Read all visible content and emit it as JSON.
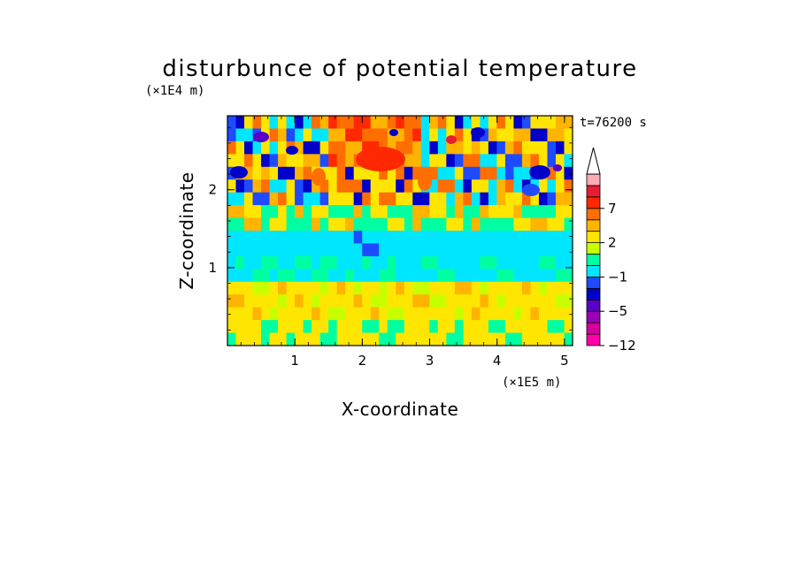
{
  "chart_data": {
    "type": "heatmap",
    "title": "disturbunce of potential temperature",
    "xlabel": "X-coordinate",
    "ylabel": "Z-coordinate",
    "x_scale_label": "(×1E5 m)",
    "y_scale_label": "(×1E4 m)",
    "time_label": "t=76200 s",
    "xlim": [
      0,
      5.12
    ],
    "ylim": [
      0,
      2.95
    ],
    "x_ticks": [
      1,
      2,
      3,
      4,
      5
    ],
    "x_tick_labels": [
      "1",
      "2",
      "3",
      "4",
      "5"
    ],
    "y_ticks": [
      1,
      2
    ],
    "y_tick_labels": [
      "1",
      "2"
    ],
    "grid": false,
    "colorbar": {
      "levels": [
        -12,
        -10,
        -8,
        -5,
        -4,
        -2,
        -1,
        0,
        1,
        2,
        4,
        5,
        7,
        10,
        12
      ],
      "colors": [
        "#ff00aa",
        "#d4009c",
        "#9c00b4",
        "#5a00c8",
        "#0000c8",
        "#1e4bff",
        "#00e6ff",
        "#00ffa0",
        "#c8ff00",
        "#ffe600",
        "#ffb400",
        "#ff6e00",
        "#ff2800",
        "#e61e32",
        "#ffaab4"
      ],
      "tick_labels": [
        "-12",
        "-5",
        "-1",
        "2",
        "7"
      ],
      "tick_values": [
        -12,
        -5,
        -1,
        2,
        7
      ],
      "extend": "max"
    },
    "field_rows_top_to_bottom": [
      "bccbbcaadabbbbcbbbccbbbccabbbbcbcbaaeccab",
      "cdbeccdacbccbccdcccbbcbbbbcbcbcbcbdcbcbcb",
      "bcbcbccbcbcbcbbebcbcdbcbcbbbcdbbbbcbcbcca",
      "cbcbcbbdcbcbcbbcbcbbbbbdbcbbbcbcbbcccbcba",
      "bdcbcbcbcbcbcbbbbcbcbccbbbcbcbcbcbbcbcbbb",
      "cbcbcdbcbcbcccccccccbcbbcbcbccbbcbbcbcbcb",
      "bcccccbcbcbbbbbbbcbbbbbbbccbbcbcccbcbbbcc",
      "ccccccccccccccccccccccccccccbccccccccccbc",
      "ccccccccccccccccccccccccbcccccccccccccccc",
      "ccbcccccccccccccccccccbcccccccccbcccccccc",
      "ccccccccccccccbcbccccccccccccbcccccccccbc",
      "bbbbccbbbbbbbcccbbbbbcccbbbbbbbbbcccbcbbb",
      "bbbbbbbbbbbbbbbbbbbbbbbbbbbbbbbbbbbbbbbbb",
      "bbbbbbbbbbbbbbbbbbbbbbbbbbbbbbbbbbbbbbbbb",
      "cbccbbbcbbcbbbbbbbbbbbcbbbbbbcbbbbcbbbbbb",
      "bcbcbbcbcbbbcbcbbcbbbbbbbbcbcbbbcbbcbbbcb",
      "bbbbcbbcbcbbbbcbcbcbbbcbcbcbbbbbcbcbcbcbb",
      "cbbbbcbbcbbbcbcbbbbbcbbbcbbcbcbbbbbbbbbcb"
    ]
  }
}
